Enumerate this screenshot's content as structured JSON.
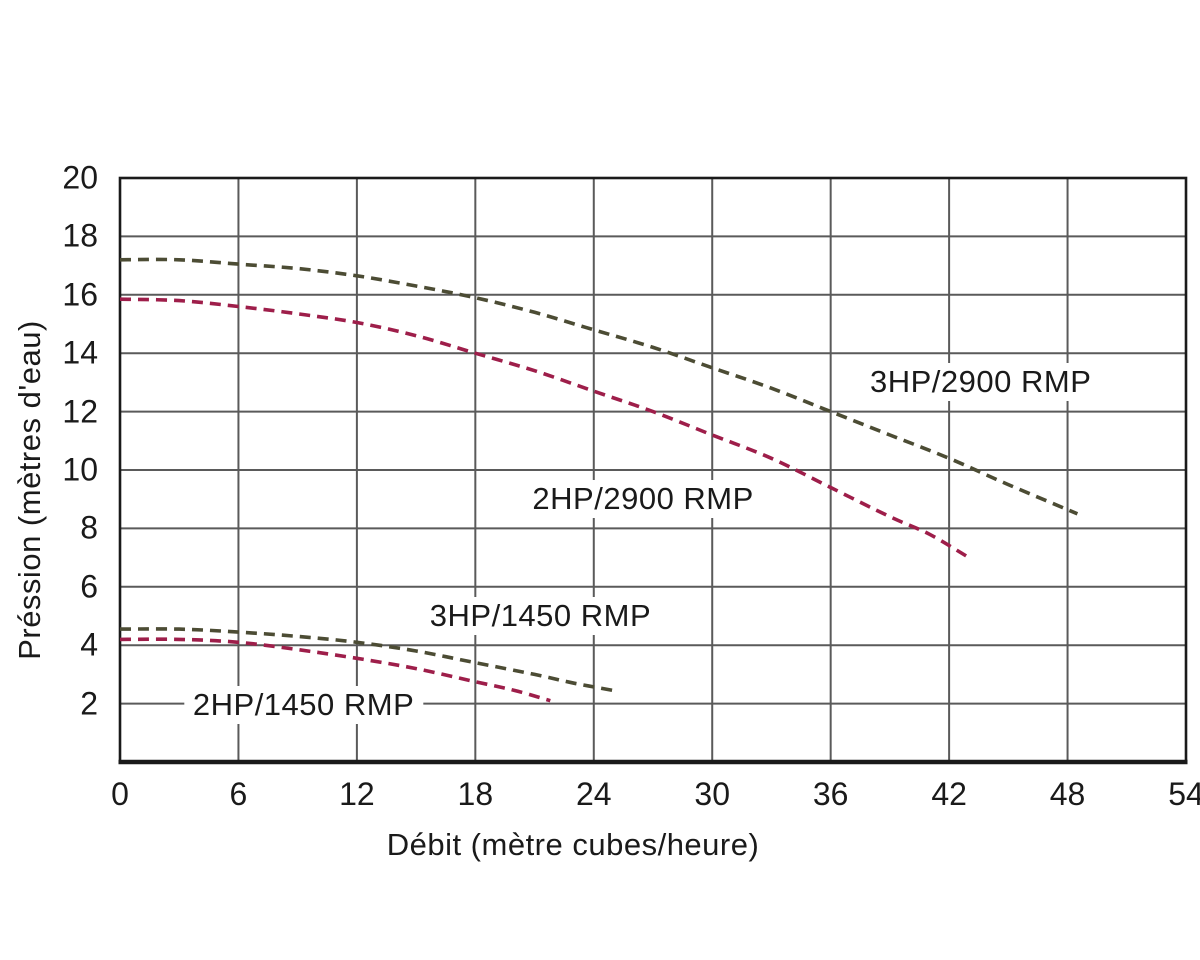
{
  "chart_data": {
    "type": "line",
    "title": "",
    "xlabel": "Débit (mètre cubes/heure)",
    "ylabel": "Préssion (mètres d'eau)",
    "xlim": [
      0,
      54
    ],
    "ylim": [
      0,
      20
    ],
    "x_ticks": [
      0,
      6,
      12,
      18,
      24,
      30,
      36,
      42,
      48,
      54
    ],
    "y_ticks": [
      2,
      4,
      6,
      8,
      10,
      12,
      14,
      16,
      18,
      20
    ],
    "grid": true,
    "legend_position": "inline-labels",
    "line_style": "dashed",
    "colors": {
      "background": "#ffffff",
      "grid": "#5a5a5a",
      "border": "#1a1a1a",
      "text": "#1a1a1a",
      "olive": "#4c4c34",
      "crimson": "#9e1e4a"
    },
    "series": [
      {
        "name": "3HP/2900 RMP",
        "color": "#4c4c34",
        "label_anchor": [
          43.6,
          13.0
        ],
        "points": [
          [
            0,
            17.2
          ],
          [
            3,
            17.2
          ],
          [
            6,
            17.05
          ],
          [
            9,
            16.9
          ],
          [
            12,
            16.65
          ],
          [
            15,
            16.3
          ],
          [
            18,
            15.9
          ],
          [
            21,
            15.4
          ],
          [
            24,
            14.8
          ],
          [
            27,
            14.2
          ],
          [
            30,
            13.5
          ],
          [
            33,
            12.8
          ],
          [
            36,
            12.0
          ],
          [
            39,
            11.2
          ],
          [
            42,
            10.4
          ],
          [
            45,
            9.5
          ],
          [
            48.5,
            8.5
          ]
        ]
      },
      {
        "name": "2HP/2900 RMP",
        "color": "#9e1e4a",
        "label_anchor": [
          26.5,
          9.0
        ],
        "points": [
          [
            0,
            15.85
          ],
          [
            3,
            15.8
          ],
          [
            6,
            15.6
          ],
          [
            9,
            15.35
          ],
          [
            12,
            15.05
          ],
          [
            15,
            14.6
          ],
          [
            18,
            14.0
          ],
          [
            21,
            13.4
          ],
          [
            24,
            12.7
          ],
          [
            27,
            12.0
          ],
          [
            30,
            11.2
          ],
          [
            33,
            10.4
          ],
          [
            36,
            9.4
          ],
          [
            39,
            8.4
          ],
          [
            41,
            7.8
          ],
          [
            43,
            7.0
          ]
        ]
      },
      {
        "name": "3HP/1450 RMP",
        "color": "#4c4c34",
        "label_anchor": [
          21.3,
          5.0
        ],
        "points": [
          [
            0,
            4.55
          ],
          [
            3,
            4.55
          ],
          [
            6,
            4.45
          ],
          [
            9,
            4.3
          ],
          [
            12,
            4.1
          ],
          [
            15,
            3.8
          ],
          [
            18,
            3.4
          ],
          [
            21,
            3.0
          ],
          [
            23,
            2.7
          ],
          [
            25,
            2.45
          ]
        ]
      },
      {
        "name": "2HP/1450 RMP",
        "color": "#9e1e4a",
        "label_anchor": [
          9.3,
          1.95
        ],
        "points": [
          [
            0,
            4.2
          ],
          [
            3,
            4.2
          ],
          [
            6,
            4.1
          ],
          [
            9,
            3.85
          ],
          [
            12,
            3.55
          ],
          [
            15,
            3.2
          ],
          [
            18,
            2.75
          ],
          [
            20,
            2.45
          ],
          [
            21.8,
            2.1
          ]
        ]
      }
    ]
  }
}
